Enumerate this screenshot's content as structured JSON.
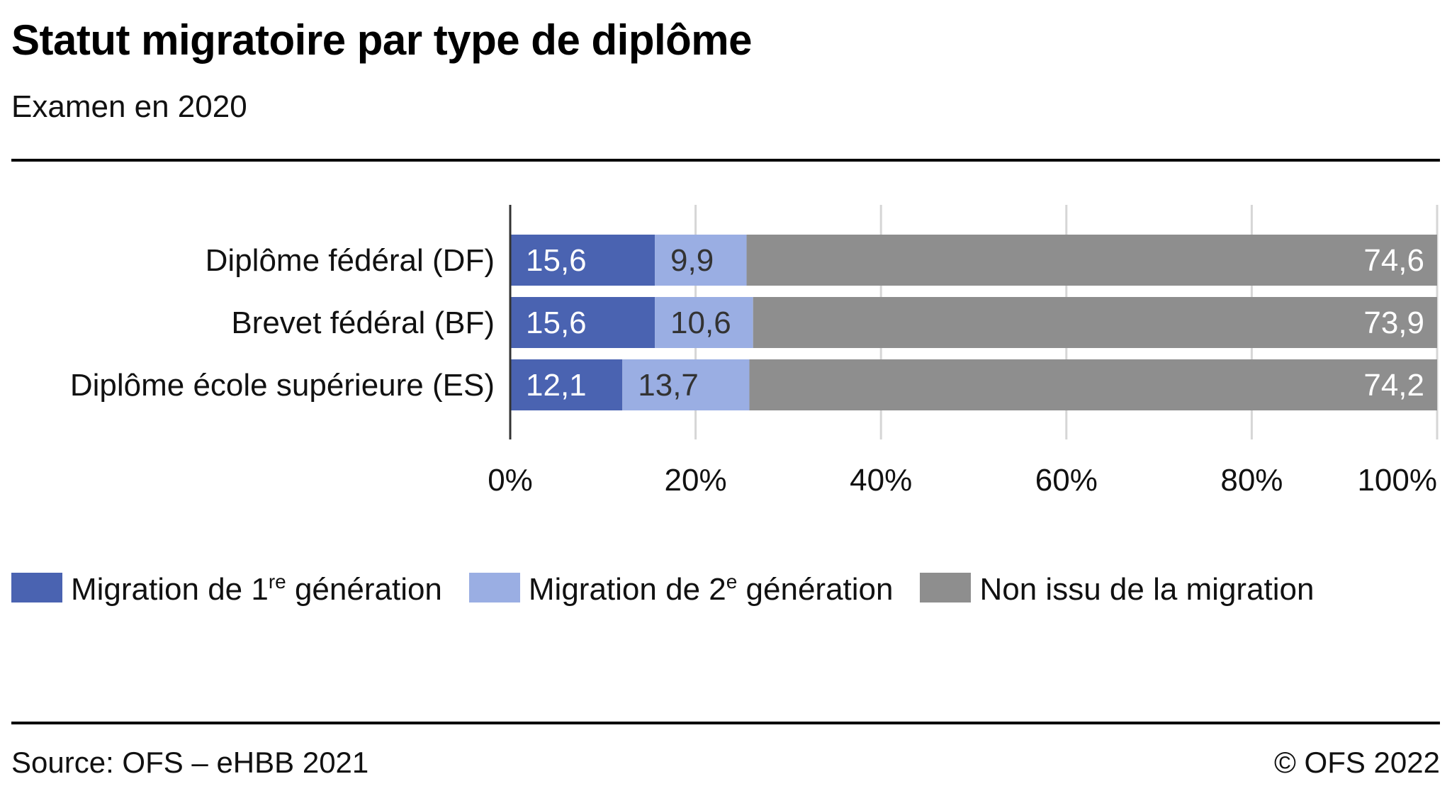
{
  "header": {
    "title": "Statut migratoire par type de diplôme",
    "subtitle": "Examen en 2020"
  },
  "legend": {
    "items": [
      {
        "pre": "Migration de 1",
        "sup": "re",
        "post": " génération",
        "color": "#4a63b1"
      },
      {
        "pre": "Migration de 2",
        "sup": "e",
        "post": " génération",
        "color": "#9aaee3"
      },
      {
        "pre": "Non issu de la migration",
        "sup": "",
        "post": "",
        "color": "#8e8e8e"
      }
    ]
  },
  "footer": {
    "source": "Source: OFS – eHBB 2021",
    "copyright": "© OFS 2022"
  },
  "chart_data": {
    "type": "bar",
    "orientation": "horizontal",
    "stacked": true,
    "title": "Statut migratoire par type de diplôme",
    "subtitle": "Examen en 2020",
    "categories": [
      "Diplôme fédéral (DF)",
      "Brevet fédéral (BF)",
      "Diplôme école supérieure (ES)"
    ],
    "series": [
      {
        "name": "Migration de 1re génération",
        "color": "#4a63b1",
        "label_color": "#ffffff",
        "values": [
          15.6,
          15.6,
          12.1
        ],
        "labels": [
          "15,6",
          "15,6",
          "12,1"
        ]
      },
      {
        "name": "Migration de 2e génération",
        "color": "#9aaee3",
        "label_color": "#333333",
        "values": [
          9.9,
          10.6,
          13.7
        ],
        "labels": [
          "9,9",
          "10,6",
          "13,7"
        ]
      },
      {
        "name": "Non issu de la migration",
        "color": "#8e8e8e",
        "label_color": "#ffffff",
        "values": [
          74.6,
          73.9,
          74.2
        ],
        "labels": [
          "74,6",
          "73,9",
          "74,2"
        ]
      }
    ],
    "xlabel": "",
    "ylabel": "",
    "xlim": [
      0,
      100
    ],
    "xticks": [
      0,
      20,
      40,
      60,
      80,
      100
    ],
    "xtick_labels": [
      "0%",
      "20%",
      "40%",
      "60%",
      "80%",
      "100%"
    ],
    "grid": true,
    "legend_position": "bottom-left"
  }
}
